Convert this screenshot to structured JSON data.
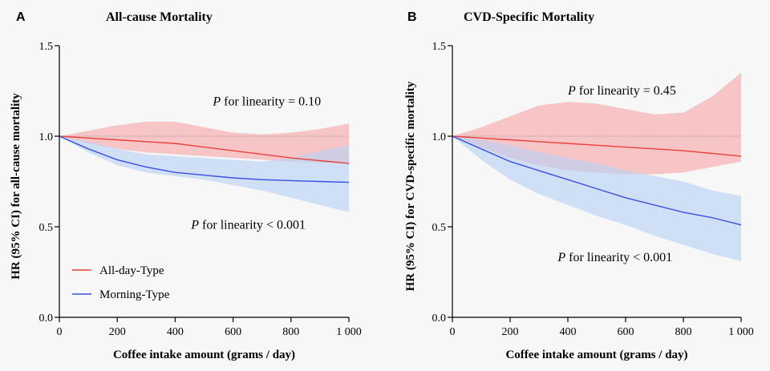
{
  "chart_data": [
    {
      "type": "line",
      "panel_label": "A",
      "title": "All-cause Mortality",
      "xlabel": "Coffee intake amount (grams / day)",
      "ylabel": "HR (95% CI) for all-cause mortality",
      "xlim": [
        0,
        1000
      ],
      "ylim": [
        0,
        1.5
      ],
      "xticks": [
        0,
        200,
        400,
        600,
        800,
        1000
      ],
      "xtick_labels": [
        "0",
        "200",
        "400",
        "600",
        "800",
        "1 000"
      ],
      "yticks": [
        0,
        0.5,
        1,
        1.5
      ],
      "ytick_labels": [
        "0.0",
        "0.5",
        "1.0",
        "1.5"
      ],
      "reference_line": 1.0,
      "legend_position": "bottom-left",
      "x": [
        0,
        100,
        200,
        300,
        400,
        500,
        600,
        700,
        800,
        900,
        1000
      ],
      "series": [
        {
          "name": "All-day-Type",
          "color": "#e8413c",
          "band_color": "#f7a6a8",
          "y": [
            1.0,
            0.99,
            0.98,
            0.97,
            0.96,
            0.94,
            0.92,
            0.9,
            0.88,
            0.865,
            0.85
          ],
          "lower": [
            1.0,
            0.96,
            0.93,
            0.91,
            0.9,
            0.89,
            0.88,
            0.87,
            0.86,
            0.855,
            0.85
          ],
          "upper": [
            1.0,
            1.03,
            1.06,
            1.08,
            1.08,
            1.05,
            1.02,
            1.01,
            1.02,
            1.04,
            1.07
          ]
        },
        {
          "name": "Morning-Type",
          "color": "#3b4fe0",
          "band_color": "#b7d0f5",
          "y": [
            1.0,
            0.93,
            0.87,
            0.83,
            0.8,
            0.785,
            0.77,
            0.76,
            0.755,
            0.75,
            0.745
          ],
          "lower": [
            1.0,
            0.91,
            0.84,
            0.8,
            0.78,
            0.76,
            0.73,
            0.7,
            0.66,
            0.62,
            0.58
          ],
          "upper": [
            1.0,
            0.97,
            0.93,
            0.9,
            0.89,
            0.88,
            0.87,
            0.86,
            0.88,
            0.92,
            0.95
          ]
        }
      ],
      "annotations": [
        {
          "italic": "P",
          "text": " for linearity = 0.10",
          "x": 530,
          "y": 1.17
        },
        {
          "italic": "P",
          "text": " for linearity < 0.001",
          "x": 455,
          "y": 0.49
        }
      ]
    },
    {
      "type": "line",
      "panel_label": "B",
      "title": "CVD-Specific Mortality",
      "xlabel": "Coffee intake amount (grams / day)",
      "ylabel": "HR (95% CI) for CVD-specific mortality",
      "xlim": [
        0,
        1000
      ],
      "ylim": [
        0,
        1.5
      ],
      "xticks": [
        0,
        200,
        400,
        600,
        800,
        1000
      ],
      "xtick_labels": [
        "0",
        "200",
        "400",
        "600",
        "800",
        "1 000"
      ],
      "yticks": [
        0,
        0.5,
        1,
        1.5
      ],
      "ytick_labels": [
        "0.0",
        "0.5",
        "1.0",
        "1.5"
      ],
      "reference_line": 1.0,
      "x": [
        0,
        100,
        200,
        300,
        400,
        500,
        600,
        700,
        800,
        900,
        1000
      ],
      "series": [
        {
          "name": "All-day-Type",
          "color": "#e8413c",
          "band_color": "#f7a6a8",
          "y": [
            1.0,
            0.99,
            0.98,
            0.97,
            0.96,
            0.95,
            0.94,
            0.93,
            0.92,
            0.905,
            0.89
          ],
          "lower": [
            1.0,
            0.94,
            0.88,
            0.84,
            0.81,
            0.8,
            0.79,
            0.79,
            0.8,
            0.83,
            0.86
          ],
          "upper": [
            1.0,
            1.05,
            1.11,
            1.17,
            1.19,
            1.18,
            1.15,
            1.12,
            1.13,
            1.22,
            1.35
          ]
        },
        {
          "name": "Morning-Type",
          "color": "#3b4fe0",
          "band_color": "#b7d0f5",
          "y": [
            1.0,
            0.93,
            0.86,
            0.81,
            0.76,
            0.71,
            0.66,
            0.62,
            0.58,
            0.55,
            0.51
          ],
          "lower": [
            1.0,
            0.87,
            0.76,
            0.68,
            0.62,
            0.56,
            0.51,
            0.45,
            0.4,
            0.35,
            0.31
          ],
          "upper": [
            1.0,
            0.98,
            0.95,
            0.91,
            0.88,
            0.85,
            0.81,
            0.78,
            0.75,
            0.7,
            0.67
          ]
        }
      ],
      "annotations": [
        {
          "italic": "P",
          "text": " for linearity = 0.45",
          "x": 400,
          "y": 1.23
        },
        {
          "italic": "P",
          "text": " for linearity < 0.001",
          "x": 365,
          "y": 0.31
        }
      ]
    }
  ]
}
